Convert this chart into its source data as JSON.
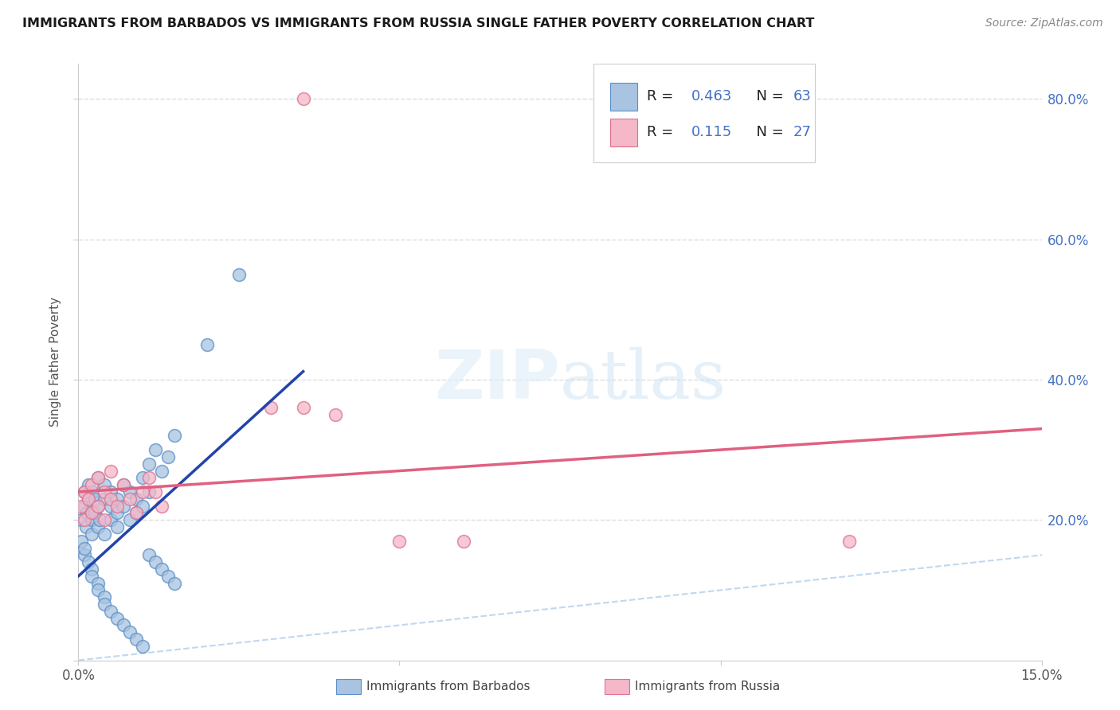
{
  "title": "IMMIGRANTS FROM BARBADOS VS IMMIGRANTS FROM RUSSIA SINGLE FATHER POVERTY CORRELATION CHART",
  "source": "Source: ZipAtlas.com",
  "ylabel": "Single Father Poverty",
  "x_min": 0.0,
  "x_max": 0.15,
  "y_min": 0.0,
  "y_max": 0.85,
  "barbados_color": "#a8c4e0",
  "barbados_edge": "#5b8fc9",
  "russia_color": "#f4b8c8",
  "russia_edge": "#e07090",
  "barbados_line_color": "#2244aa",
  "russia_line_color": "#e06080",
  "diagonal_color": "#b8d4ee",
  "R_barbados": 0.463,
  "N_barbados": 63,
  "R_russia": 0.115,
  "N_russia": 27,
  "legend_label_barbados": "Immigrants from Barbados",
  "legend_label_russia": "Immigrants from Russia",
  "watermark_zip": "ZIP",
  "watermark_atlas": "atlas",
  "background_color": "#ffffff",
  "grid_color": "#dddddd",
  "text_color": "#333333",
  "right_tick_color": "#4472c4",
  "barbados_pts_x": [
    0.0005,
    0.001,
    0.001,
    0.0012,
    0.0013,
    0.0015,
    0.0015,
    0.002,
    0.002,
    0.002,
    0.0022,
    0.0025,
    0.0025,
    0.003,
    0.003,
    0.003,
    0.0033,
    0.004,
    0.004,
    0.004,
    0.005,
    0.005,
    0.005,
    0.006,
    0.006,
    0.006,
    0.007,
    0.007,
    0.008,
    0.008,
    0.009,
    0.009,
    0.01,
    0.01,
    0.011,
    0.011,
    0.012,
    0.013,
    0.014,
    0.015,
    0.0005,
    0.001,
    0.001,
    0.0015,
    0.002,
    0.002,
    0.003,
    0.003,
    0.004,
    0.004,
    0.005,
    0.006,
    0.007,
    0.008,
    0.009,
    0.01,
    0.011,
    0.012,
    0.013,
    0.014,
    0.015,
    0.02,
    0.025
  ],
  "barbados_pts_y": [
    0.2,
    0.22,
    0.24,
    0.19,
    0.21,
    0.23,
    0.25,
    0.2,
    0.22,
    0.18,
    0.24,
    0.21,
    0.23,
    0.19,
    0.22,
    0.26,
    0.2,
    0.23,
    0.25,
    0.18,
    0.22,
    0.2,
    0.24,
    0.21,
    0.23,
    0.19,
    0.25,
    0.22,
    0.2,
    0.24,
    0.23,
    0.21,
    0.26,
    0.22,
    0.28,
    0.24,
    0.3,
    0.27,
    0.29,
    0.32,
    0.17,
    0.15,
    0.16,
    0.14,
    0.13,
    0.12,
    0.11,
    0.1,
    0.09,
    0.08,
    0.07,
    0.06,
    0.05,
    0.04,
    0.03,
    0.02,
    0.15,
    0.14,
    0.13,
    0.12,
    0.11,
    0.45,
    0.55
  ],
  "russia_pts_x": [
    0.0005,
    0.001,
    0.001,
    0.0015,
    0.002,
    0.002,
    0.003,
    0.003,
    0.004,
    0.004,
    0.005,
    0.005,
    0.006,
    0.007,
    0.008,
    0.009,
    0.01,
    0.011,
    0.012,
    0.013,
    0.03,
    0.035,
    0.04,
    0.05,
    0.06,
    0.12,
    0.035
  ],
  "russia_pts_y": [
    0.22,
    0.24,
    0.2,
    0.23,
    0.21,
    0.25,
    0.22,
    0.26,
    0.24,
    0.2,
    0.23,
    0.27,
    0.22,
    0.25,
    0.23,
    0.21,
    0.24,
    0.26,
    0.24,
    0.22,
    0.36,
    0.36,
    0.35,
    0.17,
    0.17,
    0.17,
    0.8
  ]
}
